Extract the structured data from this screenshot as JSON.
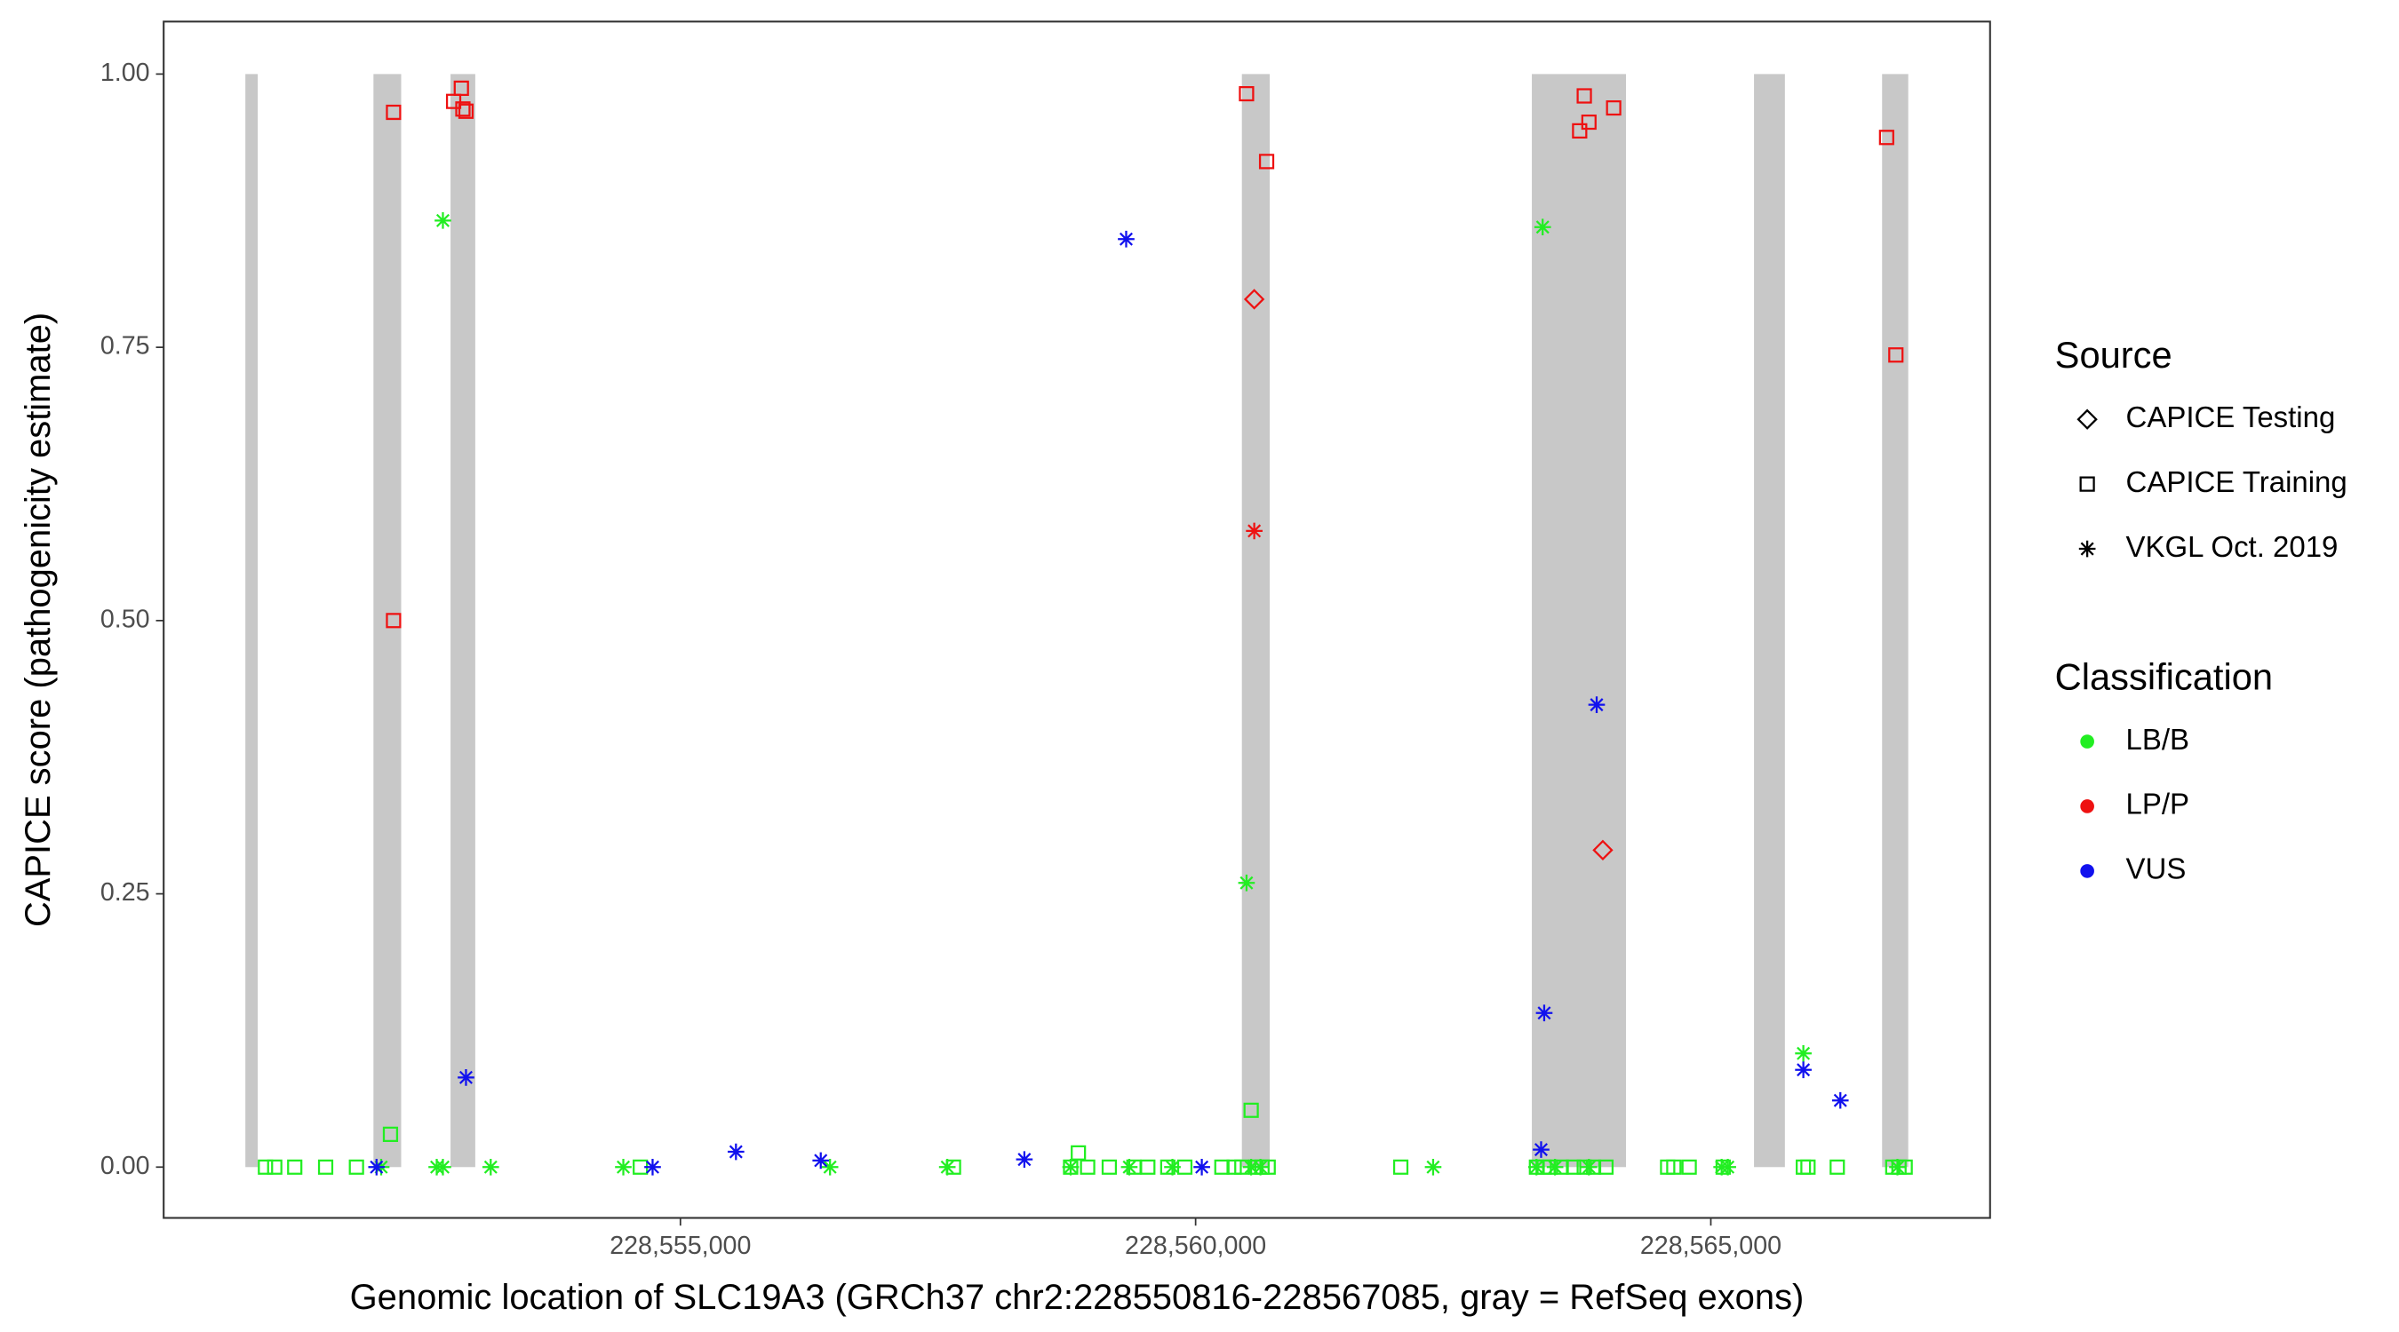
{
  "chart_data": {
    "type": "scatter",
    "x_label": "Genomic location of SLC19A3 (GRCh37 chr2:228550816-228567085, gray = RefSeq exons)",
    "y_label": "CAPICE score (pathogenicity estimate)",
    "xlim": [
      228549985,
      228567710
    ],
    "ylim": [
      -0.0465,
      1.048
    ],
    "xticks": [
      {
        "value": 228555000,
        "label": "228,555,000"
      },
      {
        "value": 228560000,
        "label": "228,560,000"
      },
      {
        "value": 228565000,
        "label": "228,565,000"
      }
    ],
    "yticks": [
      {
        "value": 0,
        "label": "0.00"
      },
      {
        "value": 0.25,
        "label": "0.25"
      },
      {
        "value": 0.5,
        "label": "0.50"
      },
      {
        "value": 0.75,
        "label": "0.75"
      },
      {
        "value": 1,
        "label": "1.00"
      }
    ],
    "exon_color": "#c8c8c8",
    "exons": [
      [
        228550778,
        228550898
      ],
      [
        228552021,
        228552290
      ],
      [
        228552769,
        228553009
      ],
      [
        228560449,
        228560719
      ],
      [
        228563263,
        228564177
      ],
      [
        228565419,
        228565719
      ],
      [
        228566662,
        228566916
      ]
    ],
    "source_title": "Source",
    "sources": [
      {
        "name": "CAPICE Testing",
        "shape": "diamond"
      },
      {
        "name": "CAPICE Training",
        "shape": "square"
      },
      {
        "name": "VKGL Oct. 2019",
        "shape": "asterisk"
      }
    ],
    "classification_title": "Classification",
    "classifications": [
      {
        "name": "LB/B",
        "color": "#22ee22"
      },
      {
        "name": "LP/P",
        "color": "#ee1111"
      },
      {
        "name": "VUS",
        "color": "#1111ee"
      }
    ],
    "series": [
      {
        "source": 1,
        "classification": 1,
        "x": [
          228552216,
          228552216,
          228552799,
          228552874,
          228552889,
          228552919,
          228560494,
          228560689,
          228563727,
          228563772,
          228563817,
          228564057,
          228566706,
          228566796
        ],
        "y": [
          0.965,
          0.5,
          0.975,
          0.987,
          0.968,
          0.966,
          0.982,
          0.92,
          0.948,
          0.98,
          0.956,
          0.969,
          0.942,
          0.743
        ]
      },
      {
        "source": 0,
        "classification": 1,
        "x": [
          228560569,
          228563952
        ],
        "y": [
          0.794,
          0.29
        ]
      },
      {
        "source": 2,
        "classification": 1,
        "x": [
          228560569
        ],
        "y": [
          0.582
        ]
      },
      {
        "source": 2,
        "classification": 0,
        "x": [
          228552695,
          228560494,
          228563368,
          228565898,
          228552096,
          228552635,
          228552695,
          228553159,
          228554446,
          228556452,
          228557590,
          228558787,
          228559356,
          228559775,
          228560539,
          228560629,
          228562305,
          228563308,
          228563488,
          228563817,
          228565105,
          228565165,
          228566811
        ],
        "y": [
          0.866,
          0.26,
          0.86,
          0.104,
          0,
          0,
          0,
          0,
          0,
          0,
          0,
          0,
          0,
          0,
          0,
          0,
          0,
          0,
          0,
          0,
          0,
          0,
          0
        ]
      },
      {
        "source": 1,
        "classification": 0,
        "x": [
          228552186,
          228560539,
          228558862,
          228550973,
          228551063,
          228551257,
          228551557,
          228551856,
          228554611,
          228557650,
          228558787,
          228558952,
          228559162,
          228559401,
          228559536,
          228559730,
          228559895,
          228560255,
          228560374,
          228560449,
          228560584,
          228560644,
          228560704,
          228561991,
          228563308,
          228563383,
          228563443,
          228563548,
          228563668,
          228563772,
          228563862,
          228563982,
          228564581,
          228564641,
          228564790,
          228565120,
          228565898,
          228565943,
          228566227,
          228566766,
          228566826,
          228566886
        ],
        "y": [
          0.03,
          0.052,
          0.013,
          0,
          0,
          0,
          0,
          0,
          0,
          0,
          0,
          0,
          0,
          0,
          0,
          0,
          0,
          0,
          0,
          0,
          0,
          0,
          0,
          0,
          0,
          0,
          0,
          0,
          0,
          0,
          0,
          0,
          0,
          0,
          0,
          0,
          0,
          0,
          0,
          0,
          0,
          0
        ]
      },
      {
        "source": 2,
        "classification": 2,
        "x": [
          228559326,
          228552919,
          228563892,
          228563383,
          228565898,
          228566257,
          228563353,
          228555539,
          228556362,
          228558338,
          228552051,
          228554730,
          228560060
        ],
        "y": [
          0.849,
          0.082,
          0.423,
          0.141,
          0.089,
          0.061,
          0.016,
          0.014,
          0.006,
          0.007,
          0,
          0,
          0
        ]
      }
    ]
  }
}
